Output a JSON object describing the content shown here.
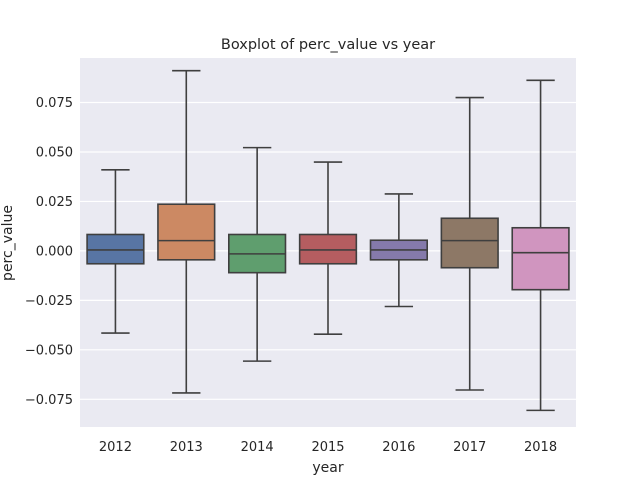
{
  "chart_data": {
    "type": "boxplot",
    "title": "Boxplot of perc_value vs year",
    "xlabel": "year",
    "ylabel": "perc_value",
    "categories": [
      "2012",
      "2013",
      "2014",
      "2015",
      "2016",
      "2017",
      "2018"
    ],
    "boxes": [
      {
        "category": "2012",
        "whisker_low": -0.0415,
        "q1": -0.0065,
        "median": 0.0005,
        "q3": 0.0083,
        "whisker_high": 0.041,
        "color": "#5875a4"
      },
      {
        "category": "2013",
        "whisker_low": -0.0718,
        "q1": -0.0045,
        "median": 0.0052,
        "q3": 0.0236,
        "whisker_high": 0.0911,
        "color": "#cc8963"
      },
      {
        "category": "2014",
        "whisker_low": -0.0557,
        "q1": -0.011,
        "median": -0.0015,
        "q3": 0.0083,
        "whisker_high": 0.0522,
        "color": "#5f9e6e"
      },
      {
        "category": "2015",
        "whisker_low": -0.0421,
        "q1": -0.0065,
        "median": 0.0005,
        "q3": 0.0083,
        "whisker_high": 0.0449,
        "color": "#b55d60"
      },
      {
        "category": "2016",
        "whisker_low": -0.0281,
        "q1": -0.0045,
        "median": 0.0005,
        "q3": 0.0054,
        "whisker_high": 0.0288,
        "color": "#857aab"
      },
      {
        "category": "2017",
        "whisker_low": -0.0703,
        "q1": -0.0085,
        "median": 0.0052,
        "q3": 0.0165,
        "whisker_high": 0.0775,
        "color": "#8d7866"
      },
      {
        "category": "2018",
        "whisker_low": -0.0806,
        "q1": -0.0196,
        "median": -0.0009,
        "q3": 0.0117,
        "whisker_high": 0.0862,
        "color": "#d095bf"
      }
    ],
    "yticks": [
      -0.075,
      -0.05,
      -0.025,
      0.0,
      0.025,
      0.05,
      0.075
    ],
    "ytick_labels": [
      "−0.075",
      "−0.050",
      "−0.025",
      "0.000",
      "0.025",
      "0.050",
      "0.075"
    ],
    "ylim": [
      -0.089,
      0.0975
    ],
    "grid": true,
    "background": "#eaeaf2",
    "grid_color": "#ffffff",
    "line_color": "#3f3f3f"
  }
}
